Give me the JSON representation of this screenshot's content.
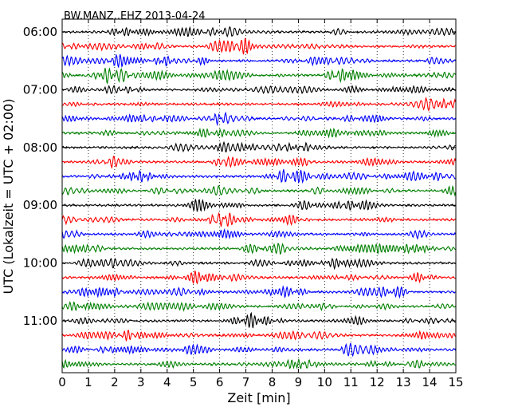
{
  "chart_data": {
    "type": "line",
    "title": "BW.MANZ..EHZ 2013-04-24",
    "xlabel": "Zeit  [min]",
    "ylabel": "UTC (Lokalzeit = UTC + 02:00)",
    "xlim": [
      0,
      15
    ],
    "x_ticks": [
      "0",
      "1",
      "2",
      "3",
      "4",
      "5",
      "6",
      "7",
      "8",
      "9",
      "10",
      "11",
      "12",
      "13",
      "14",
      "15"
    ],
    "start_time": "06:00",
    "minutes_per_trace": 15,
    "trace_count": 24,
    "y_tick_labels": [
      "06:00",
      "07:00",
      "08:00",
      "09:00",
      "10:00",
      "11:00"
    ],
    "trace_colors": [
      "#000000",
      "#ff0000",
      "#0000ff",
      "#008000"
    ],
    "grid_x": "dotted vertical lines at each minute",
    "signal": "continuous seismic noise, no distinct events"
  }
}
